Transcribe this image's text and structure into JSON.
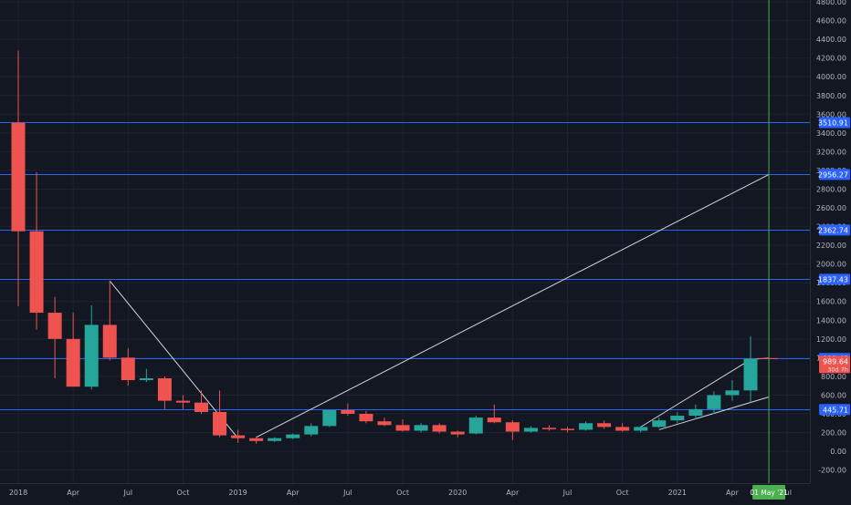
{
  "chart_data": {
    "type": "candlestick",
    "title": "",
    "interval": "monthly",
    "x_axis_labels": [
      "2018",
      "Apr",
      "Jul",
      "Oct",
      "2019",
      "Apr",
      "Jul",
      "Oct",
      "2020",
      "Apr",
      "Jul",
      "Oct",
      "2021",
      "Apr",
      "Jul"
    ],
    "y_ticks": [
      "-200.00",
      "0.00",
      "200.00",
      "400.00",
      "600.00",
      "800.00",
      "1000.00",
      "1200.00",
      "1400.00",
      "1600.00",
      "1800.00",
      "2000.00",
      "2200.00",
      "2400.00",
      "2600.00",
      "2800.00",
      "3000.00",
      "3200.00",
      "3400.00",
      "3600.00",
      "3800.00",
      "4000.00",
      "4200.00",
      "4400.00",
      "4600.00",
      "4800.00"
    ],
    "ylim": [
      -340,
      4820
    ],
    "grid": true,
    "colors": {
      "background": "#131722",
      "up": "#26a69a",
      "down": "#ef5350",
      "level_line": "#2962ff",
      "trend_line": "#d1d4dc",
      "crosshair": "#4caf50",
      "axis_text": "#b2b5be"
    },
    "candles": [
      {
        "date": "2018-01",
        "open": 3510,
        "high": 4280,
        "low": 1550,
        "close": 2350
      },
      {
        "date": "2018-02",
        "open": 2350,
        "high": 2980,
        "low": 1300,
        "close": 1480
      },
      {
        "date": "2018-03",
        "open": 1480,
        "high": 1650,
        "low": 780,
        "close": 1200
      },
      {
        "date": "2018-04",
        "open": 1200,
        "high": 1480,
        "low": 700,
        "close": 690
      },
      {
        "date": "2018-05",
        "open": 690,
        "high": 1560,
        "low": 660,
        "close": 1350
      },
      {
        "date": "2018-06",
        "open": 1350,
        "high": 1820,
        "low": 970,
        "close": 1000
      },
      {
        "date": "2018-07",
        "open": 1000,
        "high": 1100,
        "low": 700,
        "close": 760
      },
      {
        "date": "2018-08",
        "open": 760,
        "high": 880,
        "low": 740,
        "close": 780
      },
      {
        "date": "2018-09",
        "open": 780,
        "high": 800,
        "low": 450,
        "close": 540
      },
      {
        "date": "2018-10",
        "open": 540,
        "high": 600,
        "low": 450,
        "close": 520
      },
      {
        "date": "2018-11",
        "open": 520,
        "high": 650,
        "low": 400,
        "close": 420
      },
      {
        "date": "2018-12",
        "open": 420,
        "high": 650,
        "low": 150,
        "close": 170
      },
      {
        "date": "2019-01",
        "open": 170,
        "high": 230,
        "low": 90,
        "close": 140
      },
      {
        "date": "2019-02",
        "open": 140,
        "high": 160,
        "low": 80,
        "close": 110
      },
      {
        "date": "2019-03",
        "open": 110,
        "high": 150,
        "low": 100,
        "close": 140
      },
      {
        "date": "2019-04",
        "open": 140,
        "high": 190,
        "low": 130,
        "close": 180
      },
      {
        "date": "2019-05",
        "open": 180,
        "high": 300,
        "low": 160,
        "close": 270
      },
      {
        "date": "2019-06",
        "open": 270,
        "high": 440,
        "low": 260,
        "close": 440
      },
      {
        "date": "2019-07",
        "open": 440,
        "high": 510,
        "low": 380,
        "close": 400
      },
      {
        "date": "2019-08",
        "open": 400,
        "high": 430,
        "low": 300,
        "close": 320
      },
      {
        "date": "2019-09",
        "open": 320,
        "high": 360,
        "low": 270,
        "close": 280
      },
      {
        "date": "2019-10",
        "open": 280,
        "high": 340,
        "low": 210,
        "close": 220
      },
      {
        "date": "2019-11",
        "open": 220,
        "high": 300,
        "low": 200,
        "close": 280
      },
      {
        "date": "2019-12",
        "open": 280,
        "high": 300,
        "low": 190,
        "close": 210
      },
      {
        "date": "2020-01",
        "open": 210,
        "high": 220,
        "low": 150,
        "close": 180
      },
      {
        "date": "2020-02",
        "open": 190,
        "high": 380,
        "low": 180,
        "close": 360
      },
      {
        "date": "2020-03",
        "open": 360,
        "high": 500,
        "low": 300,
        "close": 310
      },
      {
        "date": "2020-04",
        "open": 310,
        "high": 330,
        "low": 120,
        "close": 210
      },
      {
        "date": "2020-05",
        "open": 210,
        "high": 270,
        "low": 200,
        "close": 250
      },
      {
        "date": "2020-06",
        "open": 250,
        "high": 280,
        "low": 220,
        "close": 240
      },
      {
        "date": "2020-07",
        "open": 240,
        "high": 260,
        "low": 200,
        "close": 230
      },
      {
        "date": "2020-08",
        "open": 230,
        "high": 320,
        "low": 220,
        "close": 300
      },
      {
        "date": "2020-09",
        "open": 300,
        "high": 330,
        "low": 240,
        "close": 260
      },
      {
        "date": "2020-10",
        "open": 260,
        "high": 300,
        "low": 210,
        "close": 220
      },
      {
        "date": "2020-11",
        "open": 220,
        "high": 270,
        "low": 200,
        "close": 260
      },
      {
        "date": "2020-12",
        "open": 260,
        "high": 360,
        "low": 250,
        "close": 330
      },
      {
        "date": "2021-01",
        "open": 330,
        "high": 420,
        "low": 300,
        "close": 380
      },
      {
        "date": "2021-02",
        "open": 380,
        "high": 500,
        "low": 340,
        "close": 450
      },
      {
        "date": "2021-03",
        "open": 450,
        "high": 640,
        "low": 400,
        "close": 600
      },
      {
        "date": "2021-04",
        "open": 600,
        "high": 760,
        "low": 540,
        "close": 650
      },
      {
        "date": "2021-05",
        "open": 650,
        "high": 1230,
        "low": 520,
        "close": 990
      }
    ],
    "horizontal_levels": [
      {
        "value": 3510.91,
        "label": "3510.91"
      },
      {
        "value": 2956.27,
        "label": "2956.27"
      },
      {
        "value": 2362.74,
        "label": "2362.74"
      },
      {
        "value": 1837.43,
        "label": "1837.43"
      },
      {
        "value": 991.48,
        "label": "991.48"
      },
      {
        "value": 445.71,
        "label": "445.71"
      }
    ],
    "price_marker": {
      "value": 989.64,
      "label": "989.64",
      "countdown": "30d 7h"
    },
    "trend_lines": [
      {
        "from": {
          "date": "2018-06",
          "value": 1820
        },
        "to": {
          "date": "2019-01",
          "value": 140
        }
      },
      {
        "from": {
          "date": "2019-02",
          "value": 150
        },
        "to": {
          "date": "2021-06",
          "value": 2956
        }
      },
      {
        "from": {
          "date": "2020-11",
          "value": 260
        },
        "to": {
          "date": "2021-05",
          "value": 980
        }
      },
      {
        "from": {
          "date": "2020-12",
          "value": 230
        },
        "to": {
          "date": "2021-06",
          "value": 580
        }
      },
      {
        "from": {
          "date": "2021-05",
          "value": 980
        },
        "to": {
          "date": "2021-06",
          "value": 995
        }
      }
    ],
    "crosshair": {
      "date": "2021-06",
      "label": "01 May '21"
    }
  }
}
